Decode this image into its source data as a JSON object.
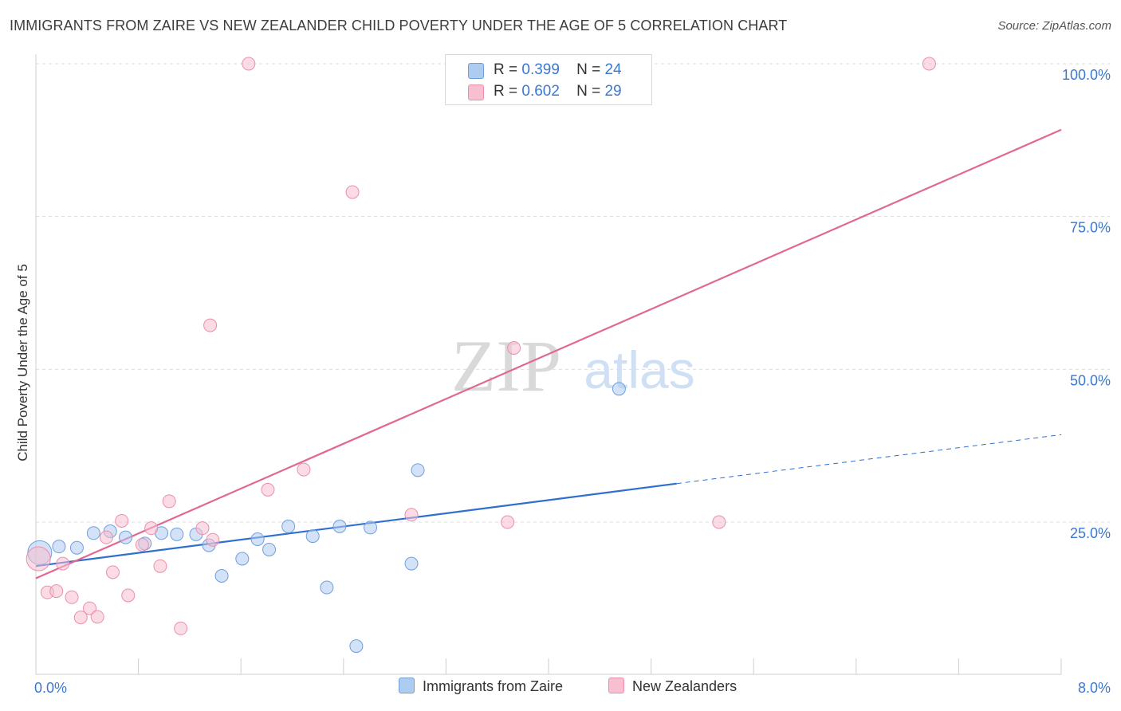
{
  "title": "IMMIGRANTS FROM ZAIRE VS NEW ZEALANDER CHILD POVERTY UNDER THE AGE OF 5 CORRELATION CHART",
  "source": "Source: ZipAtlas.com",
  "watermark": {
    "zip": "ZIP",
    "atlas": "atlas"
  },
  "colors": {
    "blue_fill": "#aecbf0",
    "blue_stroke": "#6f9fdc",
    "blue_line": "#2f6fd0",
    "pink_fill": "#f7bfd0",
    "pink_stroke": "#e890ad",
    "pink_line": "#e06892",
    "axis_label": "#3b78d0"
  },
  "legend_top": [
    {
      "r_label": "R =",
      "r_value": "0.399",
      "n_label": "N =",
      "n_value": "24",
      "color": "#aecbf0"
    },
    {
      "r_label": "R =",
      "r_value": "0.602",
      "n_label": "N =",
      "n_value": "29",
      "color": "#f7bfd0"
    }
  ],
  "legend_bottom": [
    {
      "label": "Immigrants from Zaire",
      "color": "#aecbf0"
    },
    {
      "label": "New Zealanders",
      "color": "#f7bfd0"
    }
  ],
  "chart_data": {
    "type": "scatter",
    "title": "IMMIGRANTS FROM ZAIRE VS NEW ZEALANDER CHILD POVERTY UNDER THE AGE OF 5 CORRELATION CHART",
    "xlabel": "",
    "ylabel": "Child Poverty Under the Age of 5",
    "xlim": [
      0,
      8
    ],
    "ylim": [
      0,
      105
    ],
    "x_tick_labels": [
      "0.0%",
      "8.0%"
    ],
    "y_ticks": [
      25,
      50,
      75,
      100
    ],
    "y_tick_labels": [
      "25.0%",
      "50.0%",
      "75.0%",
      "100.0%"
    ],
    "grid": true,
    "series": [
      {
        "name": "Immigrants from Zaire",
        "color": "#aecbf0",
        "points": [
          {
            "x": 0.03,
            "y": 20.0,
            "big": true
          },
          {
            "x": 0.18,
            "y": 21.0
          },
          {
            "x": 0.32,
            "y": 20.8
          },
          {
            "x": 0.45,
            "y": 23.2
          },
          {
            "x": 0.58,
            "y": 23.5
          },
          {
            "x": 0.7,
            "y": 22.5
          },
          {
            "x": 0.85,
            "y": 21.5
          },
          {
            "x": 0.98,
            "y": 23.2
          },
          {
            "x": 1.1,
            "y": 23.0
          },
          {
            "x": 1.25,
            "y": 23.0
          },
          {
            "x": 1.35,
            "y": 21.2
          },
          {
            "x": 1.45,
            "y": 16.2
          },
          {
            "x": 1.61,
            "y": 19.0
          },
          {
            "x": 1.73,
            "y": 22.2
          },
          {
            "x": 1.82,
            "y": 20.5
          },
          {
            "x": 1.97,
            "y": 24.3
          },
          {
            "x": 2.16,
            "y": 22.7
          },
          {
            "x": 2.27,
            "y": 14.3
          },
          {
            "x": 2.37,
            "y": 24.3
          },
          {
            "x": 2.5,
            "y": 4.7
          },
          {
            "x": 2.61,
            "y": 24.1
          },
          {
            "x": 2.93,
            "y": 18.2
          },
          {
            "x": 2.98,
            "y": 33.5
          },
          {
            "x": 4.55,
            "y": 46.8
          }
        ],
        "trend": {
          "x0": 0,
          "y0": 17.8,
          "x1": 5.0,
          "y1": 31.3,
          "dash_to_x": 8.0,
          "dash_to_y": 39.3
        }
      },
      {
        "name": "New Zealanders",
        "color": "#f7bfd0",
        "points": [
          {
            "x": 0.02,
            "y": 19.0,
            "big": true
          },
          {
            "x": 0.09,
            "y": 13.5
          },
          {
            "x": 0.16,
            "y": 13.7
          },
          {
            "x": 0.21,
            "y": 18.2
          },
          {
            "x": 0.28,
            "y": 12.7
          },
          {
            "x": 0.35,
            "y": 9.4
          },
          {
            "x": 0.42,
            "y": 10.9
          },
          {
            "x": 0.48,
            "y": 9.5
          },
          {
            "x": 0.55,
            "y": 22.5
          },
          {
            "x": 0.6,
            "y": 16.8
          },
          {
            "x": 0.67,
            "y": 25.2
          },
          {
            "x": 0.72,
            "y": 13.0
          },
          {
            "x": 0.83,
            "y": 21.3
          },
          {
            "x": 0.9,
            "y": 24.0
          },
          {
            "x": 0.97,
            "y": 17.8
          },
          {
            "x": 1.04,
            "y": 28.4
          },
          {
            "x": 1.13,
            "y": 7.6
          },
          {
            "x": 1.3,
            "y": 24.0
          },
          {
            "x": 1.36,
            "y": 57.2
          },
          {
            "x": 1.38,
            "y": 22.1
          },
          {
            "x": 1.66,
            "y": 100.0
          },
          {
            "x": 1.81,
            "y": 30.3
          },
          {
            "x": 2.09,
            "y": 33.6
          },
          {
            "x": 2.47,
            "y": 79.0
          },
          {
            "x": 2.93,
            "y": 26.2
          },
          {
            "x": 3.68,
            "y": 25.0
          },
          {
            "x": 3.73,
            "y": 53.5
          },
          {
            "x": 5.33,
            "y": 25.0
          },
          {
            "x": 6.97,
            "y": 100.0
          }
        ],
        "trend": {
          "x0": 0,
          "y0": 15.8,
          "x1": 8.0,
          "y1": 89.2
        }
      }
    ]
  }
}
